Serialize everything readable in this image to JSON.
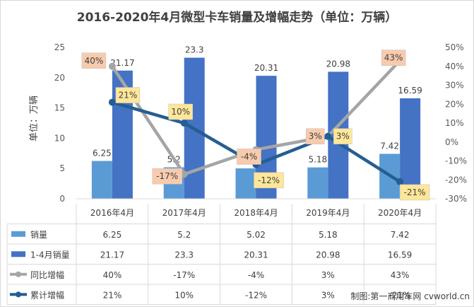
{
  "chart_data": {
    "type": "bar",
    "title": "2016-2020年4月微型卡车销量及增幅走势（单位：万辆）",
    "ylabel": "单位：万辆",
    "categories": [
      "2016年4月",
      "2017年4月",
      "2018年4月",
      "2019年4月",
      "2020年4月"
    ],
    "ylim": [
      0,
      25
    ],
    "yticks": [
      0,
      5,
      10,
      15,
      20,
      25
    ],
    "y2lim": [
      -30,
      50
    ],
    "y2ticks": [
      "-30%",
      "-20%",
      "-10%",
      "0%",
      "10%",
      "20%",
      "30%",
      "40%",
      "50%"
    ],
    "series": [
      {
        "name": "销量",
        "type": "bar",
        "values": [
          6.25,
          5.2,
          5.02,
          5.18,
          7.42
        ],
        "labels": [
          "6.25",
          "5.2",
          "5.02",
          "5.18",
          "7.42"
        ],
        "color": "#5b9bd5"
      },
      {
        "name": "1-4月销量",
        "type": "bar",
        "values": [
          21.17,
          23.3,
          20.31,
          20.98,
          16.59
        ],
        "labels": [
          "21.17",
          "23.3",
          "20.31",
          "20.98",
          "16.59"
        ],
        "color": "#4472c4"
      },
      {
        "name": "同比增幅",
        "type": "line",
        "axis": "right",
        "values": [
          40,
          -17,
          -4,
          3,
          43
        ],
        "labels": [
          "40%",
          "-17%",
          "-4%",
          "3%",
          "43%"
        ],
        "color": "#a5a5a5"
      },
      {
        "name": "累计增幅",
        "type": "line",
        "axis": "right",
        "values": [
          21,
          10,
          -12,
          3,
          -21
        ],
        "labels": [
          "21%",
          "10%",
          "-12%",
          "3%",
          "-21%"
        ],
        "color": "#255e91"
      }
    ],
    "table": true,
    "grid": false
  },
  "watermark": "制图:第一商用车网 cvworld.cn"
}
